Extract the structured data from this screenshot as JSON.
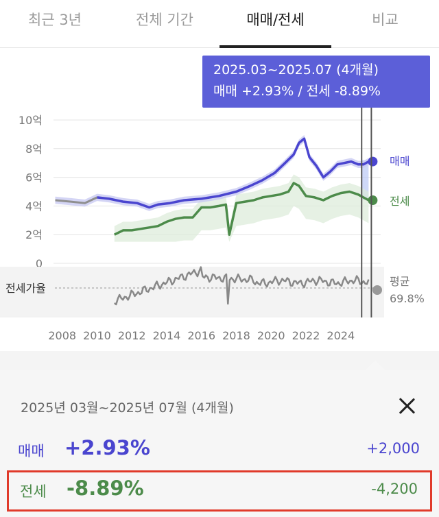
{
  "tabs": [
    {
      "label": "최근 3년"
    },
    {
      "label": "전체 기간"
    },
    {
      "label": "매매/전세",
      "active": true
    },
    {
      "label": "비교"
    }
  ],
  "tooltip": {
    "line1": "2025.03~2025.07 (4개월)",
    "line2": "매매 +2.93%  /  전세 -8.89%"
  },
  "chart_data": {
    "type": "line",
    "y_tick_labels": [
      "10억",
      "8억",
      "6억",
      "4억",
      "2억",
      "0"
    ],
    "y_ticks": [
      10,
      8,
      6,
      4,
      2,
      0
    ],
    "ylim": [
      0,
      10
    ],
    "x_tick_labels": [
      "2008",
      "2010",
      "2012",
      "2014",
      "2016",
      "2018",
      "2020",
      "2022",
      "2024"
    ],
    "xlim": [
      2007.5,
      2025.9
    ],
    "series": [
      {
        "name": "매매",
        "color": "#4a45cf",
        "x": [
          2007.6,
          2008.5,
          2009.3,
          2010.0,
          2010.7,
          2011.5,
          2012.3,
          2013.0,
          2013.5,
          2014.2,
          2015.0,
          2016.0,
          2017.0,
          2018.0,
          2018.8,
          2019.5,
          2020.2,
          2020.8,
          2021.3,
          2021.6,
          2021.9,
          2022.2,
          2022.6,
          2023.0,
          2023.4,
          2023.8,
          2024.2,
          2024.6,
          2025.0,
          2025.3,
          2025.6
        ],
        "values": [
          4.4,
          4.3,
          4.2,
          4.6,
          4.5,
          4.3,
          4.2,
          3.9,
          4.1,
          4.2,
          4.4,
          4.5,
          4.7,
          5.0,
          5.4,
          5.8,
          6.3,
          7.0,
          7.6,
          8.4,
          8.7,
          7.4,
          6.8,
          6.0,
          6.4,
          6.9,
          7.0,
          7.1,
          6.9,
          6.9,
          7.1
        ]
      },
      {
        "name": "전세",
        "color": "#4c8b4a",
        "x": [
          2011.0,
          2011.5,
          2012.0,
          2012.5,
          2013.0,
          2013.5,
          2014.0,
          2014.5,
          2015.0,
          2015.5,
          2016.0,
          2016.5,
          2017.0,
          2017.4,
          2017.6,
          2018.0,
          2018.5,
          2019.0,
          2019.5,
          2020.0,
          2020.5,
          2021.0,
          2021.3,
          2021.6,
          2022.0,
          2022.5,
          2023.0,
          2023.5,
          2024.0,
          2024.5,
          2025.0,
          2025.3,
          2025.6
        ],
        "values": [
          2.0,
          2.3,
          2.3,
          2.4,
          2.5,
          2.6,
          2.9,
          3.1,
          3.2,
          3.2,
          3.9,
          3.9,
          4.0,
          4.1,
          2.0,
          4.2,
          4.3,
          4.4,
          4.6,
          4.7,
          4.8,
          5.0,
          5.6,
          5.4,
          4.7,
          4.6,
          4.4,
          4.7,
          4.9,
          5.0,
          4.8,
          4.6,
          4.4
        ]
      }
    ],
    "ratio": {
      "label": "전세가율",
      "avg_label": "평균",
      "avg_value": "69.8%",
      "color": "#888888"
    },
    "series_labels": {
      "sale": "매매",
      "jeonse": "전세"
    }
  },
  "panel": {
    "title": "2025년 03월~2025년 07월 (4개월)",
    "rows": [
      {
        "label": "매매",
        "pct": "+2.93%",
        "amount": "+2,000"
      },
      {
        "label": "전세",
        "pct": "-8.89%",
        "amount": "-4,200"
      }
    ]
  }
}
